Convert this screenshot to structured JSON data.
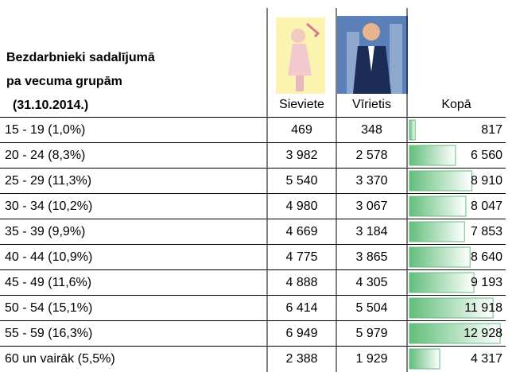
{
  "header": {
    "title_lines": [
      "Bezdarbnieki sadalījumā",
      "pa vecuma grupām",
      "(31.10.2014.)"
    ],
    "columns": [
      "Sieviete",
      "Vīrietis",
      "Kopā"
    ]
  },
  "table": {
    "rows": [
      [
        "15 - 19 (1,0%)",
        "469",
        "348",
        {
          "value": 817,
          "label": "817"
        }
      ],
      [
        "20 - 24 (8,3%)",
        "3 982",
        "2 578",
        {
          "value": 6560,
          "label": "6 560"
        }
      ],
      [
        "25 - 29 (11,3%)",
        "5 540",
        "3 370",
        {
          "value": 8910,
          "label": "8 910"
        }
      ],
      [
        "30 - 34 (10,2%)",
        "4 980",
        "3 067",
        {
          "value": 8047,
          "label": "8 047"
        }
      ],
      [
        "35 - 39 (9,9%)",
        "4 669",
        "3 184",
        {
          "value": 7853,
          "label": "7 853"
        }
      ],
      [
        "40 - 44 (10,9%)",
        "4 775",
        "3 865",
        {
          "value": 8640,
          "label": "8 640"
        }
      ],
      [
        "45 - 49 (11,6%)",
        "4 888",
        "4 305",
        {
          "value": 9193,
          "label": "9 193"
        }
      ],
      [
        "50 - 54 (15,1%)",
        "6 414",
        "5 504",
        {
          "value": 11918,
          "label": "11 918"
        }
      ],
      [
        "55 - 59 (16,3%)",
        "6 949",
        "5 979",
        {
          "value": 12928,
          "label": "12 928"
        }
      ],
      [
        "60 un vairāk (5,5%)",
        "2 388",
        "1 929",
        {
          "value": 4317,
          "label": "4 317"
        }
      ]
    ]
  }
}
